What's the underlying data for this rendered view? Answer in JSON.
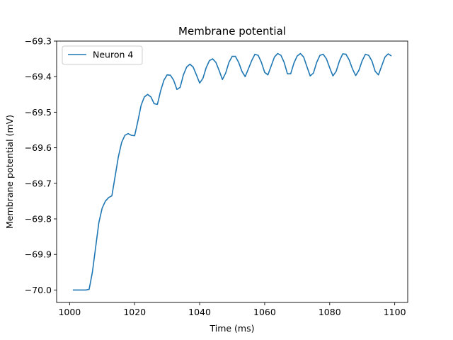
{
  "chart_data": {
    "type": "line",
    "title": "Membrane potential",
    "xlabel": "Time (ms)",
    "ylabel": "Membrane potential (mV)",
    "xlim": [
      996,
      1104
    ],
    "ylim": [
      -70.035,
      -69.3
    ],
    "xticks": [
      1000,
      1020,
      1040,
      1060,
      1080,
      1100
    ],
    "xtick_labels": [
      "1000",
      "1020",
      "1040",
      "1060",
      "1080",
      "1100"
    ],
    "yticks": [
      -70.0,
      -69.9,
      -69.8,
      -69.7,
      -69.6,
      -69.5,
      -69.4,
      -69.3
    ],
    "ytick_labels": [
      "−70.0",
      "−69.9",
      "−69.8",
      "−69.7",
      "−69.6",
      "−69.5",
      "−69.4",
      "−69.3"
    ],
    "grid": false,
    "legend_position": "top-left",
    "series": [
      {
        "name": "Neuron 4",
        "color": "#1f77b4",
        "x": [
          1001,
          1002,
          1003,
          1004,
          1005,
          1006,
          1007,
          1008,
          1009,
          1010,
          1011,
          1012,
          1013,
          1014,
          1015,
          1016,
          1017,
          1018,
          1019,
          1020,
          1021,
          1022,
          1023,
          1024,
          1025,
          1026,
          1027,
          1028,
          1029,
          1030,
          1031,
          1032,
          1033,
          1034,
          1035,
          1036,
          1037,
          1038,
          1039,
          1040,
          1041,
          1042,
          1043,
          1044,
          1045,
          1046,
          1047,
          1048,
          1049,
          1050,
          1051,
          1052,
          1053,
          1054,
          1055,
          1056,
          1057,
          1058,
          1059,
          1060,
          1061,
          1062,
          1063,
          1064,
          1065,
          1066,
          1067,
          1068,
          1069,
          1070,
          1071,
          1072,
          1073,
          1074,
          1075,
          1076,
          1077,
          1078,
          1079,
          1080,
          1081,
          1082,
          1083,
          1084,
          1085,
          1086,
          1087,
          1088,
          1089,
          1090,
          1091,
          1092,
          1093,
          1094,
          1095,
          1096,
          1097,
          1098,
          1099
        ],
        "values": [
          -70.0,
          -70.0,
          -70.0,
          -70.0,
          -70.0,
          -69.998,
          -69.95,
          -69.88,
          -69.81,
          -69.77,
          -69.75,
          -69.74,
          -69.735,
          -69.68,
          -69.625,
          -69.585,
          -69.565,
          -69.56,
          -69.565,
          -69.566,
          -69.525,
          -69.48,
          -69.457,
          -69.45,
          -69.457,
          -69.476,
          -69.478,
          -69.44,
          -69.41,
          -69.395,
          -69.396,
          -69.41,
          -69.436,
          -69.43,
          -69.395,
          -69.373,
          -69.365,
          -69.373,
          -69.395,
          -69.418,
          -69.405,
          -69.375,
          -69.355,
          -69.35,
          -69.36,
          -69.383,
          -69.408,
          -69.39,
          -69.36,
          -69.343,
          -69.343,
          -69.36,
          -69.385,
          -69.4,
          -69.378,
          -69.355,
          -69.337,
          -69.34,
          -69.36,
          -69.388,
          -69.395,
          -69.37,
          -69.345,
          -69.335,
          -69.34,
          -69.36,
          -69.392,
          -69.392,
          -69.362,
          -69.342,
          -69.335,
          -69.345,
          -69.372,
          -69.398,
          -69.39,
          -69.36,
          -69.34,
          -69.337,
          -69.35,
          -69.375,
          -69.398,
          -69.385,
          -69.356,
          -69.336,
          -69.337,
          -69.353,
          -69.378,
          -69.397,
          -69.382,
          -69.355,
          -69.337,
          -69.34,
          -69.356,
          -69.385,
          -69.395,
          -69.37,
          -69.345,
          -69.336,
          -69.342
        ]
      }
    ]
  }
}
